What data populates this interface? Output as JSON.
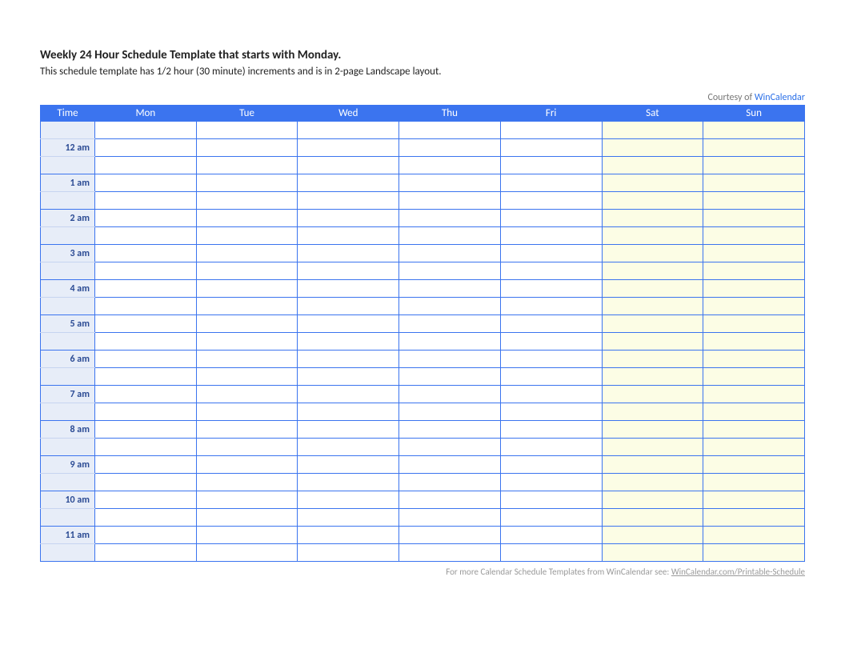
{
  "header": {
    "title": "Weekly 24 Hour Schedule Template that starts with Monday.",
    "subtitle": "This schedule template has 1/2 hour (30 minute) increments and is in 2-page Landscape layout.",
    "courtesy_prefix": "Courtesy of ",
    "courtesy_link": "WinCalendar"
  },
  "table": {
    "time_header": "Time",
    "days": [
      "Mon",
      "Tue",
      "Wed",
      "Thu",
      "Fri",
      "Sat",
      "Sun"
    ],
    "weekend_days": [
      "Sat",
      "Sun"
    ],
    "time_rows": [
      {
        "label": "",
        "half": ""
      },
      {
        "label": "12 am",
        "half": ""
      },
      {
        "label": "1 am",
        "half": ""
      },
      {
        "label": "2 am",
        "half": ""
      },
      {
        "label": "3 am",
        "half": ""
      },
      {
        "label": "4 am",
        "half": ""
      },
      {
        "label": "5 am",
        "half": ""
      },
      {
        "label": "6 am",
        "half": ""
      },
      {
        "label": "7 am",
        "half": ""
      },
      {
        "label": "8 am",
        "half": ""
      },
      {
        "label": "9 am",
        "half": ""
      },
      {
        "label": "10 am",
        "half": ""
      },
      {
        "label": "11 am",
        "half": ""
      }
    ],
    "colors": {
      "border": "#3b74ef",
      "header_bg": "#3b74ef",
      "header_text": "#ffffff",
      "time_col_bg": "#e7edf8",
      "time_text": "#2b4b94",
      "weekday_cell_bg": "#ffffff",
      "weekend_cell_bg": "#fcfde5",
      "time_inner_border": "#c6d4f0"
    }
  },
  "footer": {
    "text_prefix": "For more Calendar Schedule Templates from WinCalendar see:  ",
    "link_text": "WinCalendar.com/Printable-Schedule"
  }
}
